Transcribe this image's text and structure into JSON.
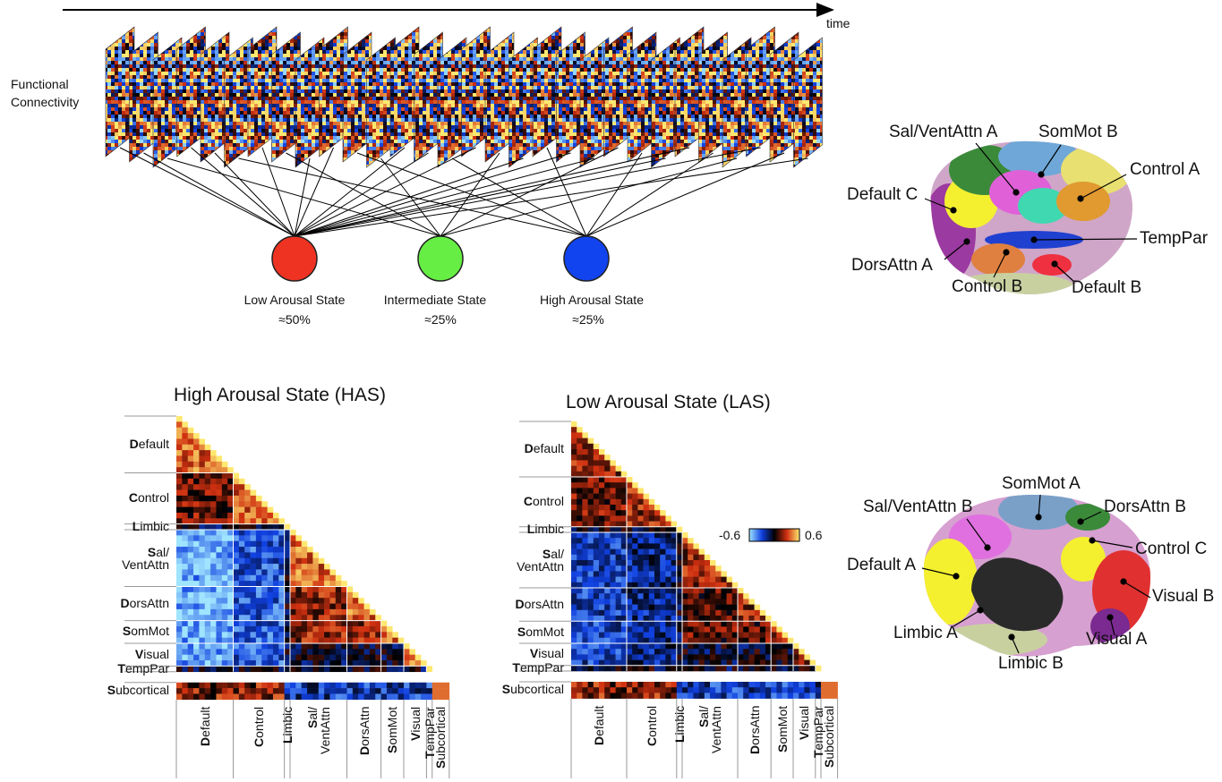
{
  "time_label": "time",
  "fc_label": "Functional Connectivity",
  "states": [
    {
      "name": "Low Arousal State",
      "share": "≈50%"
    },
    {
      "name": "Intermediate State",
      "share": "≈25%"
    },
    {
      "name": "High Arousal State",
      "share": "≈25%"
    }
  ],
  "matrices": [
    {
      "title": "High Arousal State (HAS)"
    },
    {
      "title": "Low Arousal State (LAS)"
    }
  ],
  "networks": [
    "Default",
    "Control",
    "Limbic",
    "Sal/\nVentAttn",
    "DorsAttn",
    "SomMot",
    "Visual",
    "TempPar",
    "Subcortical"
  ],
  "colorbar": {
    "min": -0.6,
    "max": 0.6
  },
  "brains": [
    {
      "labels": [
        "Sal/VentAttn A",
        "SomMot B",
        "Control A",
        "Default C",
        "TempPar",
        "DorsAttn A",
        "Control B",
        "Default B"
      ]
    },
    {
      "labels": [
        "SomMot A",
        "Sal/VentAttn B",
        "DorsAttn B",
        "Control C",
        "Default A",
        "Visual B",
        "Limbic A",
        "Visual A",
        "Limbic B"
      ]
    }
  ]
}
